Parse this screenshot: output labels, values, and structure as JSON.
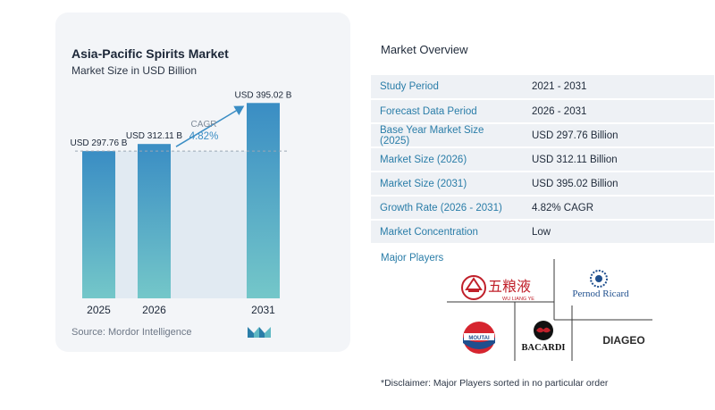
{
  "header": {
    "title": "Asia-Pacific Spirits Market",
    "subtitle": "Market Size in USD Billion"
  },
  "chart_data": {
    "type": "bar",
    "categories": [
      "2025",
      "2026",
      "2031"
    ],
    "values": [
      297.76,
      312.11,
      395.02
    ],
    "value_labels": [
      "USD 297.76 B",
      "USD 312.11 B",
      "USD 395.02 B"
    ],
    "title": "Asia-Pacific Spirits Market",
    "subtitle": "Market Size in USD Billion",
    "cagr_label": "CAGR",
    "cagr_value": "4.82%",
    "ylim": [
      0,
      410
    ],
    "colors": {
      "bar_top": "#3a8dc4",
      "bar_bottom": "#74c7c9",
      "background": "#f3f5f8",
      "highlight": "#e1eaf2"
    }
  },
  "source": "Source:  Mordor Intelligence",
  "overview": {
    "title": "Market Overview",
    "rows": [
      {
        "key": "Study Period",
        "value": "2021 - 2031"
      },
      {
        "key": "Forecast Data Period",
        "value": "2026 - 2031"
      },
      {
        "key": "Base Year Market Size (2025)",
        "value": "USD 297.76 Billion"
      },
      {
        "key": "Market Size (2026)",
        "value": "USD 312.11 Billion"
      },
      {
        "key": "Market Size (2031)",
        "value": "USD 395.02 Billion"
      },
      {
        "key": "Growth Rate (2026 - 2031)",
        "value": "4.82% CAGR"
      },
      {
        "key": "Market Concentration",
        "value": "Low"
      }
    ],
    "players_label": "Major Players",
    "players": [
      "WU LIANG YE",
      "Pernod Ricard",
      "MOUTAI",
      "BACARDI",
      "DIAGEO"
    ]
  },
  "disclaimer": "*Disclaimer: Major Players sorted in no particular order"
}
